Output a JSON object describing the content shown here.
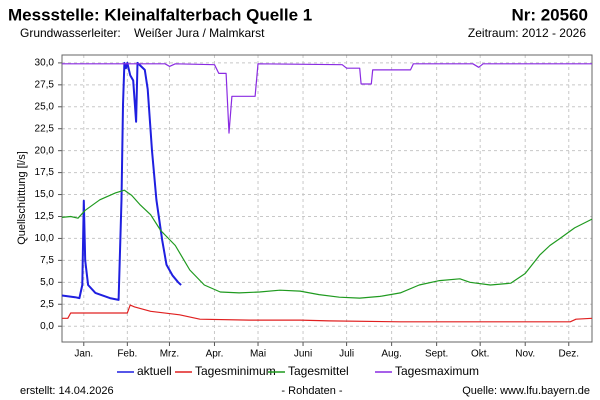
{
  "chart_data": {
    "type": "line",
    "title": "Messstelle: Kleinalfalterbach Quelle 1",
    "station_number": "Nr: 20560",
    "aquifer_label": "Grundwasserleiter:",
    "aquifer": "Weißer Jura / Malmkarst",
    "period": "Zeitraum: 2012 - 2026",
    "y_label": "Quellschüttung [l/s]",
    "created": "erstellt:  14.04.2026",
    "note": "- Rohdaten -",
    "source": "Quelle: www.lfu.bayern.de",
    "xlim": [
      0,
      365
    ],
    "xticks": [
      {
        "value": 15,
        "label": "Jan."
      },
      {
        "value": 45,
        "label": "Feb."
      },
      {
        "value": 74,
        "label": "Mrz."
      },
      {
        "value": 105,
        "label": "Apr."
      },
      {
        "value": 135,
        "label": "Mai"
      },
      {
        "value": 166,
        "label": "Juni"
      },
      {
        "value": 196,
        "label": "Juli"
      },
      {
        "value": 227,
        "label": "Aug."
      },
      {
        "value": 258,
        "label": "Sept."
      },
      {
        "value": 288,
        "label": "Okt."
      },
      {
        "value": 319,
        "label": "Nov."
      },
      {
        "value": 349,
        "label": "Dez."
      }
    ],
    "ylim": [
      -1.8,
      30.9
    ],
    "yticks": [
      {
        "value": 0,
        "label": "0,0"
      },
      {
        "value": 2.5,
        "label": "2,5"
      },
      {
        "value": 5,
        "label": "5,0"
      },
      {
        "value": 7.5,
        "label": "7,5"
      },
      {
        "value": 10,
        "label": "10,0"
      },
      {
        "value": 12.5,
        "label": "12,5"
      },
      {
        "value": 15,
        "label": "15,0"
      },
      {
        "value": 17.5,
        "label": "17,5"
      },
      {
        "value": 20,
        "label": "20,0"
      },
      {
        "value": 22.5,
        "label": "22,5"
      },
      {
        "value": 25,
        "label": "25,0"
      },
      {
        "value": 27.5,
        "label": "27,5"
      },
      {
        "value": 30,
        "label": "30,0"
      }
    ],
    "grid": true,
    "series": [
      {
        "name": "aktuell",
        "color": "#1f1fe0",
        "x": [
          0,
          9,
          12,
          14,
          15,
          16,
          18,
          23,
          33,
          39,
          41,
          42,
          43,
          44,
          45,
          47,
          49,
          51,
          52,
          57,
          59,
          62,
          65,
          69,
          72,
          76,
          80,
          82
        ],
        "values": [
          3.5,
          3.3,
          3.2,
          4.7,
          14.3,
          7.5,
          4.7,
          3.8,
          3.2,
          3.0,
          14.4,
          25.2,
          30.0,
          29.4,
          30.0,
          28.6,
          28.0,
          23.3,
          30.0,
          29.2,
          27.0,
          20.0,
          14.4,
          9.8,
          7.0,
          5.8,
          5.0,
          4.7
        ]
      },
      {
        "name": "Tagesminimum",
        "color": "#e02020",
        "x": [
          0,
          4,
          6,
          45,
          47,
          50,
          61,
          81,
          95,
          129,
          164,
          184,
          233,
          350,
          354,
          365
        ],
        "values": [
          0.9,
          0.9,
          1.5,
          1.5,
          2.4,
          2.2,
          1.7,
          1.3,
          0.8,
          0.7,
          0.7,
          0.6,
          0.5,
          0.5,
          0.8,
          0.9
        ]
      },
      {
        "name": "Tagesmittel",
        "color": "#1f9a1f",
        "x": [
          0,
          6,
          11,
          16,
          26,
          37,
          43,
          48,
          54,
          61,
          68,
          78,
          88,
          98,
          109,
          122,
          136,
          150,
          164,
          177,
          191,
          205,
          219,
          233,
          246,
          260,
          274,
          281,
          295,
          309,
          319,
          329,
          336,
          343,
          353,
          365
        ],
        "values": [
          12.4,
          12.5,
          12.3,
          13.2,
          14.4,
          15.2,
          15.5,
          14.9,
          13.8,
          12.7,
          10.9,
          9.2,
          6.4,
          4.7,
          3.9,
          3.8,
          3.9,
          4.1,
          4.0,
          3.6,
          3.3,
          3.2,
          3.4,
          3.8,
          4.7,
          5.2,
          5.4,
          5.0,
          4.7,
          4.9,
          6.0,
          8.1,
          9.2,
          10.0,
          11.2,
          12.2
        ]
      },
      {
        "name": "Tagesmaximum",
        "color": "#8a2be2",
        "x": [
          0,
          71,
          74,
          78,
          105,
          108,
          113,
          115,
          117,
          133,
          135,
          193,
          196,
          205,
          206,
          213,
          214,
          240,
          242,
          283,
          287,
          290,
          365
        ],
        "values": [
          29.9,
          29.9,
          29.6,
          29.9,
          29.8,
          28.8,
          28.8,
          22.0,
          26.2,
          26.2,
          29.9,
          29.8,
          29.4,
          29.4,
          27.6,
          27.6,
          29.2,
          29.2,
          29.9,
          29.9,
          29.5,
          29.9,
          29.9
        ]
      }
    ]
  }
}
